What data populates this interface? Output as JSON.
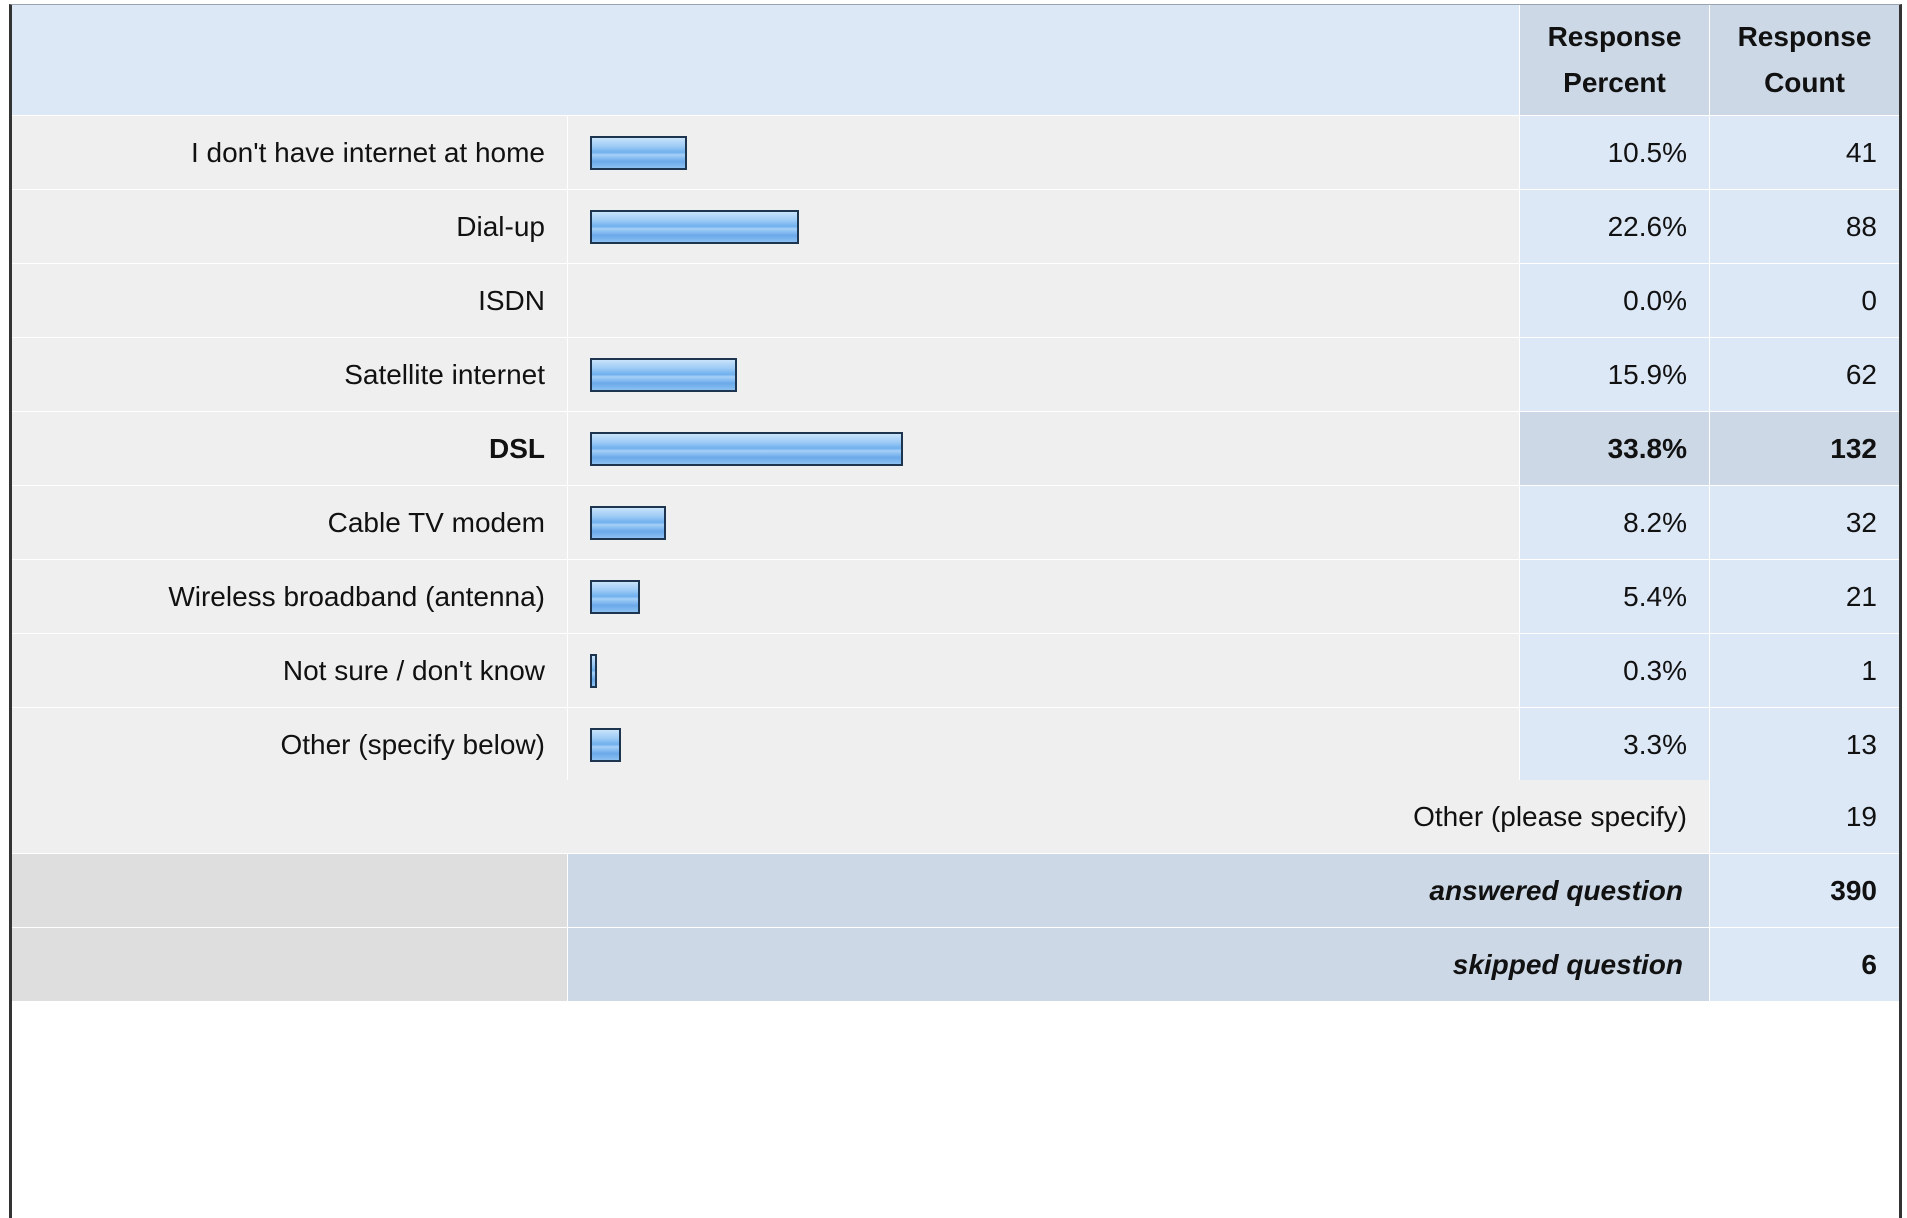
{
  "header": {
    "percent_heading": "Response Percent",
    "count_heading": "Response Count"
  },
  "chart_data": {
    "type": "bar",
    "orientation": "horizontal",
    "categories": [
      "I don't have internet at home",
      "Dial-up",
      "ISDN",
      "Satellite internet",
      "DSL",
      "Cable TV modem",
      "Wireless broadband (antenna)",
      "Not sure / don't know",
      "Other (specify below)"
    ],
    "values": [
      10.5,
      22.6,
      0.0,
      15.9,
      33.8,
      8.2,
      5.4,
      0.3,
      3.3
    ],
    "counts": [
      41,
      88,
      0,
      62,
      132,
      32,
      21,
      1,
      13
    ],
    "percent_labels": [
      "10.5%",
      "22.6%",
      "0.0%",
      "15.9%",
      "33.8%",
      "8.2%",
      "5.4%",
      "0.3%",
      "3.3%"
    ],
    "highlighted_category": "DSL",
    "bar_color": "#6fb0ee"
  },
  "other_specify": {
    "label": "Other (please specify)",
    "count": "19"
  },
  "summary": {
    "answered_label": "answered question",
    "answered_count": "390",
    "skipped_label": "skipped question",
    "skipped_count": "6"
  }
}
